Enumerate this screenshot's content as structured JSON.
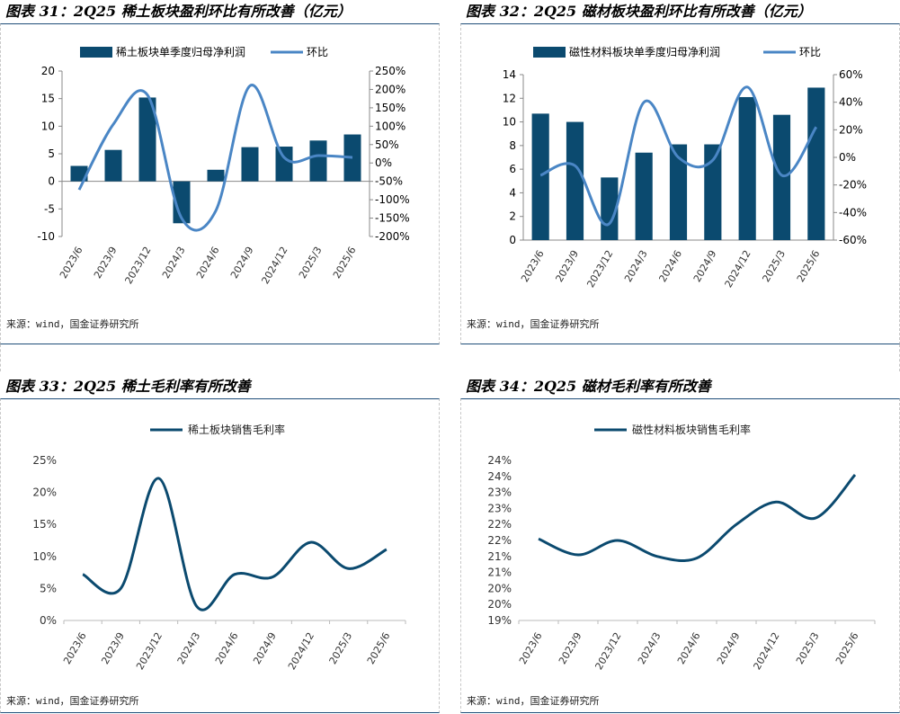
{
  "colors": {
    "bar": "#0b4a6f",
    "line_light": "#4a86c5",
    "line_dark": "#0b4a6f",
    "border": "#1f4e79",
    "text": "#000000"
  },
  "source_text": "来源：wind，国金证券研究所",
  "chart_data": [
    {
      "id": "fig31",
      "type": "bar+line",
      "title": "图表 31：2Q25 稀土板块盈利环比有所改善（亿元）",
      "categories": [
        "2023/6",
        "2023/9",
        "2023/12",
        "2024/3",
        "2024/6",
        "2024/9",
        "2024/12",
        "2025/3",
        "2025/6"
      ],
      "series": [
        {
          "name": "稀土板块单季度归母净利润",
          "kind": "bar",
          "axis": "left",
          "values": [
            2.8,
            5.7,
            15.2,
            -7.6,
            2.1,
            6.2,
            6.3,
            7.4,
            8.5
          ]
        },
        {
          "name": "环比",
          "kind": "line",
          "axis": "right",
          "values": [
            -73,
            105,
            185,
            -150,
            -130,
            210,
            15,
            20,
            15
          ]
        }
      ],
      "left_axis": {
        "min": -10,
        "max": 20,
        "step": 5,
        "ticks": [
          "-10",
          "-5",
          "0",
          "5",
          "10",
          "15",
          "20"
        ]
      },
      "right_axis": {
        "min": -200,
        "max": 250,
        "step": 50,
        "ticks": [
          "-200%",
          "-150%",
          "-100%",
          "-50%",
          "0%",
          "50%",
          "100%",
          "150%",
          "200%",
          "250%"
        ]
      }
    },
    {
      "id": "fig32",
      "type": "bar+line",
      "title": "图表 32：2Q25 磁材板块盈利环比有所改善（亿元）",
      "categories": [
        "2023/6",
        "2023/9",
        "2023/12",
        "2024/3",
        "2024/6",
        "2024/9",
        "2024/12",
        "2025/3",
        "2025/6"
      ],
      "series": [
        {
          "name": "磁性材料板块单季度归母净利润",
          "kind": "bar",
          "axis": "left",
          "values": [
            10.7,
            10.0,
            5.3,
            7.4,
            8.1,
            8.1,
            12.1,
            10.6,
            12.9
          ]
        },
        {
          "name": "环比",
          "kind": "line",
          "axis": "right",
          "values": [
            -13,
            -6,
            -48,
            40,
            0,
            -2,
            51,
            -13,
            22
          ]
        }
      ],
      "left_axis": {
        "min": 0,
        "max": 14,
        "step": 2,
        "ticks": [
          "0",
          "2",
          "4",
          "6",
          "8",
          "10",
          "12",
          "14"
        ]
      },
      "right_axis": {
        "min": -60,
        "max": 60,
        "step": 20,
        "ticks": [
          "-60%",
          "-40%",
          "-20%",
          "0%",
          "20%",
          "40%",
          "60%"
        ]
      }
    },
    {
      "id": "fig33",
      "type": "line",
      "title": "图表 33：2Q25 稀土毛利率有所改善",
      "categories": [
        "2023/6",
        "2023/9",
        "2023/12",
        "2024/3",
        "2024/6",
        "2024/9",
        "2024/12",
        "2025/3",
        "2025/6"
      ],
      "series": [
        {
          "name": "稀土板块销售毛利率",
          "kind": "line",
          "values": [
            7.2,
            5.0,
            22.2,
            2.2,
            7.2,
            6.8,
            12.2,
            8.1,
            11.1
          ]
        }
      ],
      "y_axis": {
        "min": 0,
        "max": 25,
        "step": 5,
        "ticks": [
          "0%",
          "5%",
          "10%",
          "15%",
          "20%",
          "25%"
        ]
      }
    },
    {
      "id": "fig34",
      "type": "line",
      "title": "图表 34：2Q25 磁材毛利率有所改善",
      "categories": [
        "2023/6",
        "2023/9",
        "2023/12",
        "2024/3",
        "2024/6",
        "2024/9",
        "2024/12",
        "2025/3",
        "2025/6"
      ],
      "series": [
        {
          "name": "磁性材料板块销售毛利率",
          "kind": "line",
          "values": [
            21.55,
            21.05,
            21.5,
            21.0,
            20.95,
            22.0,
            22.7,
            22.2,
            23.55
          ]
        }
      ],
      "y_axis": {
        "min": 19,
        "max": 24,
        "step": 0.5,
        "ticks": [
          "19%",
          "20%",
          "20%",
          "21%",
          "21%",
          "22%",
          "22%",
          "23%",
          "23%",
          "24%",
          "24%"
        ]
      }
    }
  ]
}
